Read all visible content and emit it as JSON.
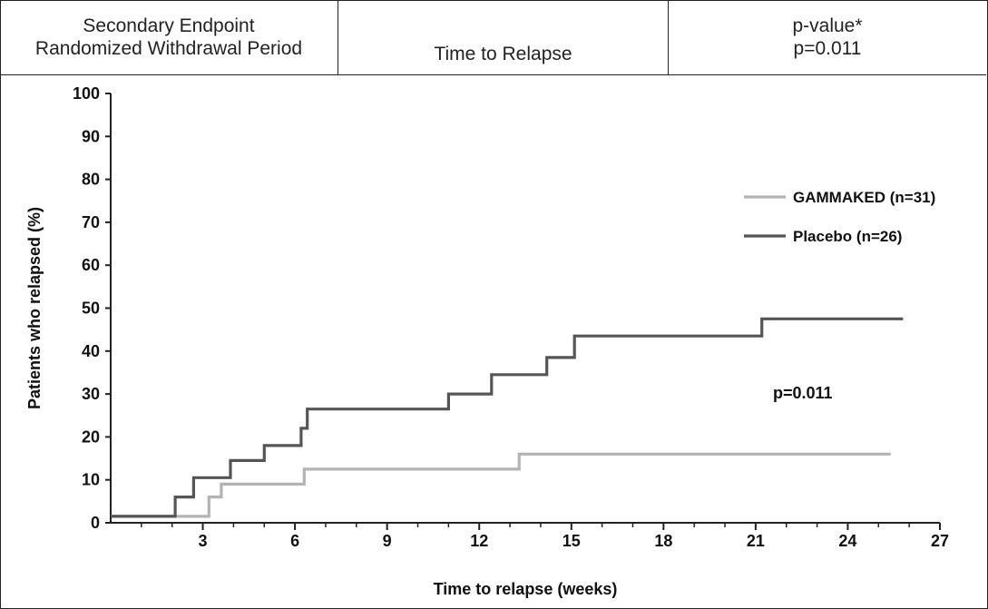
{
  "header": {
    "col1_line1": "Secondary Endpoint",
    "col1_line2": "Randomized Withdrawal Period",
    "col2": "Time to Relapse",
    "col3_line1": "p-value*",
    "col3_line2": "p=0.011"
  },
  "chart_data": {
    "type": "line",
    "step": true,
    "xlabel": "Time to relapse (weeks)",
    "ylabel": "Patients who relapsed (%)",
    "xlim": [
      0,
      27
    ],
    "ylim": [
      0,
      100
    ],
    "xticks": [
      3,
      6,
      9,
      12,
      15,
      18,
      21,
      24,
      27
    ],
    "yticks": [
      0,
      10,
      20,
      30,
      40,
      50,
      60,
      70,
      80,
      90,
      100
    ],
    "grid": false,
    "legend_position": "right",
    "annotation": "p=0.011",
    "series": [
      {
        "name": "GAMMAKED (n=31)",
        "color": "#b3b3b3",
        "points": [
          [
            0,
            1.5
          ],
          [
            3.2,
            1.5
          ],
          [
            3.2,
            6
          ],
          [
            3.6,
            6
          ],
          [
            3.6,
            9
          ],
          [
            6.3,
            9
          ],
          [
            6.3,
            12.5
          ],
          [
            13.3,
            12.5
          ],
          [
            13.3,
            16
          ],
          [
            25.4,
            16
          ]
        ]
      },
      {
        "name": "Placebo (n=26)",
        "color": "#555555",
        "points": [
          [
            0,
            1.5
          ],
          [
            2.1,
            1.5
          ],
          [
            2.1,
            6
          ],
          [
            2.7,
            6
          ],
          [
            2.7,
            10.5
          ],
          [
            3.9,
            10.5
          ],
          [
            3.9,
            14.5
          ],
          [
            5,
            14.5
          ],
          [
            5,
            18
          ],
          [
            6.2,
            18
          ],
          [
            6.2,
            22
          ],
          [
            6.4,
            22
          ],
          [
            6.4,
            26.5
          ],
          [
            11,
            26.5
          ],
          [
            11,
            30
          ],
          [
            12.4,
            30
          ],
          [
            12.4,
            34.5
          ],
          [
            14.2,
            34.5
          ],
          [
            14.2,
            38.5
          ],
          [
            15.1,
            38.5
          ],
          [
            15.1,
            43.5
          ],
          [
            21.2,
            43.5
          ],
          [
            21.2,
            47.5
          ],
          [
            25.8,
            47.5
          ]
        ]
      }
    ]
  }
}
